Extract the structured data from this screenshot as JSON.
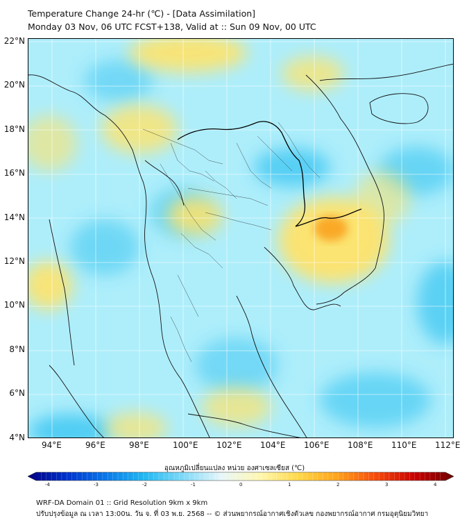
{
  "header": {
    "title_line1": "Temperature Change 24-hr (℃) - [Data Assimilation]",
    "title_line2": "Monday 03 Nov, 06 UTC FCST+138, Valid at :: Sun 09 Nov, 00 UTC"
  },
  "map": {
    "lat_labels": [
      "22°N",
      "20°N",
      "18°N",
      "16°N",
      "14°N",
      "12°N",
      "10°N",
      "8°N",
      "6°N",
      "4°N"
    ],
    "lon_labels": [
      "94°E",
      "96°E",
      "98°E",
      "100°E",
      "102°E",
      "104°E",
      "106°E",
      "108°E",
      "110°E",
      "112°E"
    ],
    "background_color": "#aeeefb",
    "warm_color": "#ffe36a",
    "hot_color": "#f9a21f",
    "cool_color": "#38c4f1"
  },
  "colorbar": {
    "title": "อุณหภูมิเปลี่ยนแปลง หน่วย องศาเซลเซียส (℃)",
    "ticks": [
      "-4",
      "-3",
      "-2",
      "-1",
      "0",
      "1",
      "2",
      "3",
      "4"
    ],
    "min": -4,
    "max": 4,
    "colors": [
      "#000080",
      "#0033cc",
      "#0a78e8",
      "#22b8f2",
      "#7fd9f7",
      "#e8f7fa",
      "#fff7b0",
      "#ffd84a",
      "#ffa21c",
      "#f54a0c",
      "#c80000",
      "#6e0000"
    ]
  },
  "footer": {
    "line1": "WRF-DA Domain 01 :: Grid Resolution 9km x 9km",
    "line2": "ปรับปรุงข้อมูล ณ เวลา 13:00น. วัน จ. ที่ 03 พ.ย. 2568 -- © ส่วนพยากรณ์อากาศเชิงตัวเลข กองพยากรณ์อากาศ กรมอุตุนิยมวิทยา"
  }
}
